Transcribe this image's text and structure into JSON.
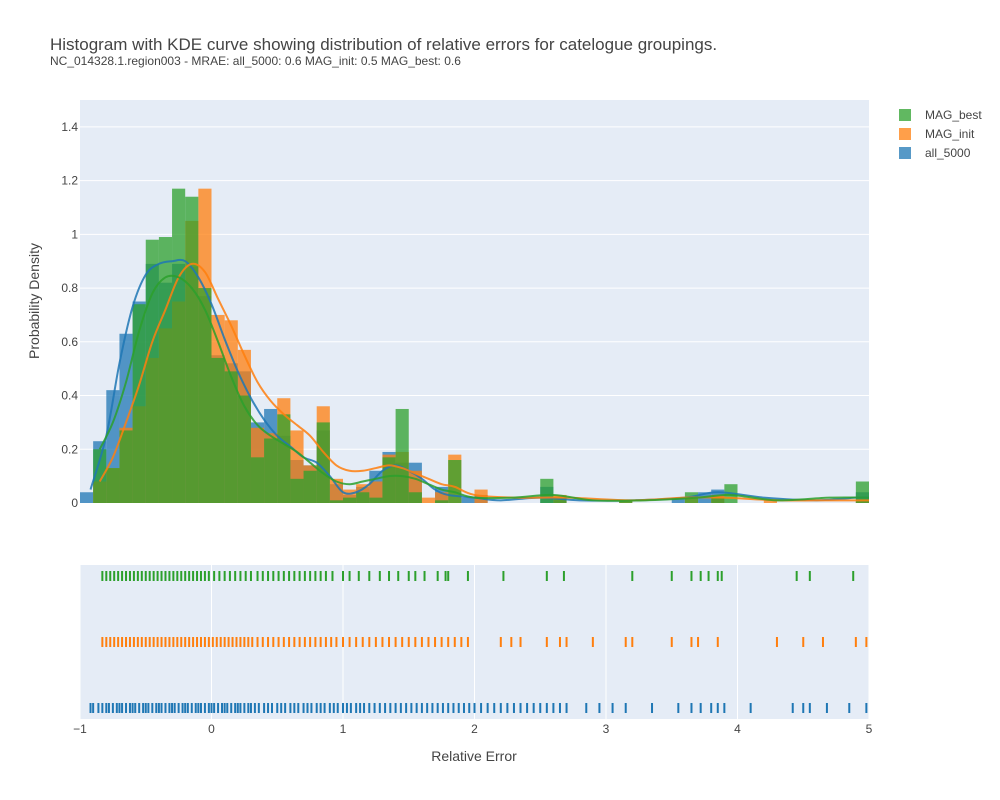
{
  "chart_data": {
    "type": "histogram",
    "title": "Histogram with KDE curve showing distribution of relative errors for catelogue groupings.",
    "subtitle": "NC_014328.1.region003 - MRAE: all_5000: 0.6 MAG_init: 0.5 MAG_best: 0.6",
    "xlabel": "Relative Error",
    "ylabel": "Probability Density",
    "xlim": [
      -1,
      5
    ],
    "ylim": [
      0,
      1.5
    ],
    "x_ticks": [
      {
        "value": -1,
        "label": "−1"
      },
      {
        "value": 0,
        "label": "0"
      },
      {
        "value": 1,
        "label": "1"
      },
      {
        "value": 2,
        "label": "2"
      },
      {
        "value": 3,
        "label": "3"
      },
      {
        "value": 4,
        "label": "4"
      },
      {
        "value": 5,
        "label": "5"
      }
    ],
    "y_ticks": [
      {
        "value": 0,
        "label": "0"
      },
      {
        "value": 0.2,
        "label": "0.2"
      },
      {
        "value": 0.4,
        "label": "0.4"
      },
      {
        "value": 0.6,
        "label": "0.6"
      },
      {
        "value": 0.8,
        "label": "0.8"
      },
      {
        "value": 1,
        "label": "1"
      },
      {
        "value": 1.2,
        "label": "1.2"
      },
      {
        "value": 1.4,
        "label": "1.4"
      }
    ],
    "grid": true,
    "legend_position": "top-right",
    "legend": [
      "MAG_best",
      "MAG_init",
      "all_5000"
    ],
    "bin_width": 0.1,
    "series": [
      {
        "name": "all_5000",
        "color": "#1f77b4",
        "hist": [
          [
            -0.95,
            0.04
          ],
          [
            -0.85,
            0.23
          ],
          [
            -0.75,
            0.42
          ],
          [
            -0.65,
            0.63
          ],
          [
            -0.55,
            0.75
          ],
          [
            -0.45,
            0.89
          ],
          [
            -0.35,
            0.82
          ],
          [
            -0.25,
            0.89
          ],
          [
            -0.15,
            0.88
          ],
          [
            -0.05,
            0.77
          ],
          [
            0.05,
            0.55
          ],
          [
            0.15,
            0.52
          ],
          [
            0.25,
            0.49
          ],
          [
            0.35,
            0.3
          ],
          [
            0.45,
            0.35
          ],
          [
            0.55,
            0.25
          ],
          [
            0.65,
            0.16
          ],
          [
            0.75,
            0.14
          ],
          [
            0.85,
            0.27
          ],
          [
            0.95,
            0.07
          ],
          [
            1.05,
            0.03
          ],
          [
            1.15,
            0.06
          ],
          [
            1.25,
            0.12
          ],
          [
            1.35,
            0.19
          ],
          [
            1.45,
            0.15
          ],
          [
            1.55,
            0.15
          ],
          [
            1.75,
            0.06
          ],
          [
            1.95,
            0.02
          ],
          [
            2.05,
            0.03
          ],
          [
            2.55,
            0.06
          ],
          [
            2.65,
            0.01
          ],
          [
            3.55,
            0.02
          ],
          [
            3.75,
            0.04
          ],
          [
            3.85,
            0.05
          ],
          [
            4.95,
            0.04
          ]
        ],
        "kde": [
          [
            -0.92,
            0.05
          ],
          [
            -0.8,
            0.25
          ],
          [
            -0.7,
            0.52
          ],
          [
            -0.6,
            0.73
          ],
          [
            -0.5,
            0.85
          ],
          [
            -0.4,
            0.89
          ],
          [
            -0.3,
            0.9
          ],
          [
            -0.2,
            0.9
          ],
          [
            -0.1,
            0.84
          ],
          [
            0,
            0.74
          ],
          [
            0.1,
            0.61
          ],
          [
            0.2,
            0.49
          ],
          [
            0.3,
            0.39
          ],
          [
            0.4,
            0.31
          ],
          [
            0.5,
            0.25
          ],
          [
            0.6,
            0.21
          ],
          [
            0.7,
            0.17
          ],
          [
            0.8,
            0.15
          ],
          [
            0.9,
            0.1
          ],
          [
            1,
            0.04
          ],
          [
            1.1,
            0.04
          ],
          [
            1.2,
            0.07
          ],
          [
            1.3,
            0.12
          ],
          [
            1.4,
            0.14
          ],
          [
            1.5,
            0.12
          ],
          [
            1.6,
            0.09
          ],
          [
            1.7,
            0.05
          ],
          [
            1.8,
            0.03
          ],
          [
            2,
            0.02
          ],
          [
            2.2,
            0.01
          ],
          [
            2.5,
            0.02
          ],
          [
            2.8,
            0.01
          ],
          [
            3.2,
            0.01
          ],
          [
            3.6,
            0.02
          ],
          [
            3.85,
            0.04
          ],
          [
            4.2,
            0.02
          ],
          [
            4.6,
            0.01
          ],
          [
            4.9,
            0.02
          ],
          [
            5,
            0.02
          ]
        ],
        "rug": [
          -0.92,
          -0.9,
          -0.86,
          -0.83,
          -0.8,
          -0.78,
          -0.75,
          -0.72,
          -0.7,
          -0.68,
          -0.65,
          -0.62,
          -0.6,
          -0.58,
          -0.55,
          -0.52,
          -0.5,
          -0.48,
          -0.45,
          -0.42,
          -0.4,
          -0.38,
          -0.35,
          -0.32,
          -0.3,
          -0.28,
          -0.25,
          -0.22,
          -0.2,
          -0.18,
          -0.15,
          -0.12,
          -0.1,
          -0.08,
          -0.05,
          -0.02,
          0,
          0.02,
          0.05,
          0.08,
          0.1,
          0.12,
          0.15,
          0.18,
          0.2,
          0.22,
          0.25,
          0.28,
          0.3,
          0.33,
          0.36,
          0.4,
          0.43,
          0.46,
          0.5,
          0.53,
          0.56,
          0.6,
          0.63,
          0.66,
          0.7,
          0.73,
          0.76,
          0.8,
          0.83,
          0.86,
          0.9,
          0.93,
          0.96,
          1,
          1.03,
          1.06,
          1.1,
          1.13,
          1.16,
          1.2,
          1.24,
          1.28,
          1.32,
          1.36,
          1.4,
          1.44,
          1.48,
          1.52,
          1.56,
          1.6,
          1.64,
          1.68,
          1.72,
          1.76,
          1.8,
          1.84,
          1.88,
          1.92,
          1.96,
          2,
          2.05,
          2.1,
          2.15,
          2.2,
          2.25,
          2.3,
          2.35,
          2.4,
          2.45,
          2.5,
          2.55,
          2.6,
          2.65,
          2.7,
          2.85,
          2.95,
          3.05,
          3.15,
          3.35,
          3.55,
          3.65,
          3.72,
          3.8,
          3.85,
          3.9,
          4.1,
          4.42,
          4.5,
          4.55,
          4.68,
          4.85,
          4.98
        ]
      },
      {
        "name": "MAG_init",
        "color": "#ff7f0e",
        "hist": [
          [
            -0.85,
            0.08
          ],
          [
            -0.75,
            0.13
          ],
          [
            -0.65,
            0.28
          ],
          [
            -0.55,
            0.36
          ],
          [
            -0.45,
            0.54
          ],
          [
            -0.35,
            0.65
          ],
          [
            -0.25,
            0.75
          ],
          [
            -0.15,
            1.05
          ],
          [
            -0.05,
            1.17
          ],
          [
            0.05,
            0.7
          ],
          [
            0.15,
            0.68
          ],
          [
            0.25,
            0.57
          ],
          [
            0.35,
            0.28
          ],
          [
            0.45,
            0.26
          ],
          [
            0.55,
            0.39
          ],
          [
            0.65,
            0.27
          ],
          [
            0.75,
            0.14
          ],
          [
            0.85,
            0.36
          ],
          [
            0.95,
            0.09
          ],
          [
            1.05,
            0.05
          ],
          [
            1.15,
            0.07
          ],
          [
            1.25,
            0.08
          ],
          [
            1.35,
            0.18
          ],
          [
            1.45,
            0.19
          ],
          [
            1.55,
            0.12
          ],
          [
            1.65,
            0.02
          ],
          [
            1.75,
            0.04
          ],
          [
            1.85,
            0.18
          ],
          [
            2.05,
            0.05
          ],
          [
            2.65,
            0.03
          ],
          [
            3.15,
            0.01
          ],
          [
            3.65,
            0.02
          ],
          [
            3.85,
            0.03
          ],
          [
            4.25,
            0.01
          ],
          [
            4.95,
            0.01
          ]
        ],
        "kde": [
          [
            -0.85,
            0.08
          ],
          [
            -0.75,
            0.17
          ],
          [
            -0.65,
            0.3
          ],
          [
            -0.55,
            0.44
          ],
          [
            -0.45,
            0.6
          ],
          [
            -0.35,
            0.72
          ],
          [
            -0.25,
            0.84
          ],
          [
            -0.15,
            0.89
          ],
          [
            -0.05,
            0.86
          ],
          [
            0.05,
            0.76
          ],
          [
            0.15,
            0.66
          ],
          [
            0.25,
            0.55
          ],
          [
            0.35,
            0.45
          ],
          [
            0.45,
            0.38
          ],
          [
            0.55,
            0.33
          ],
          [
            0.65,
            0.29
          ],
          [
            0.75,
            0.25
          ],
          [
            0.85,
            0.19
          ],
          [
            0.95,
            0.14
          ],
          [
            1.05,
            0.12
          ],
          [
            1.15,
            0.12
          ],
          [
            1.25,
            0.13
          ],
          [
            1.35,
            0.14
          ],
          [
            1.45,
            0.13
          ],
          [
            1.55,
            0.11
          ],
          [
            1.65,
            0.09
          ],
          [
            1.75,
            0.07
          ],
          [
            1.85,
            0.06
          ],
          [
            2,
            0.03
          ],
          [
            2.3,
            0.02
          ],
          [
            2.7,
            0.02
          ],
          [
            3.2,
            0.01
          ],
          [
            3.6,
            0.02
          ],
          [
            3.9,
            0.02
          ],
          [
            4.3,
            0.01
          ],
          [
            4.7,
            0.01
          ],
          [
            5,
            0.01
          ]
        ],
        "rug": [
          -0.83,
          -0.8,
          -0.77,
          -0.74,
          -0.71,
          -0.68,
          -0.65,
          -0.62,
          -0.59,
          -0.56,
          -0.53,
          -0.5,
          -0.47,
          -0.44,
          -0.41,
          -0.38,
          -0.35,
          -0.32,
          -0.29,
          -0.26,
          -0.23,
          -0.2,
          -0.17,
          -0.14,
          -0.11,
          -0.08,
          -0.05,
          -0.02,
          0.01,
          0.04,
          0.07,
          0.1,
          0.13,
          0.16,
          0.19,
          0.22,
          0.25,
          0.28,
          0.31,
          0.35,
          0.39,
          0.43,
          0.47,
          0.51,
          0.55,
          0.59,
          0.63,
          0.67,
          0.71,
          0.75,
          0.79,
          0.83,
          0.87,
          0.91,
          0.95,
          1,
          1.05,
          1.1,
          1.15,
          1.2,
          1.25,
          1.3,
          1.35,
          1.4,
          1.45,
          1.5,
          1.55,
          1.6,
          1.65,
          1.7,
          1.75,
          1.8,
          1.85,
          1.9,
          1.95,
          2.2,
          2.28,
          2.35,
          2.55,
          2.65,
          2.7,
          2.9,
          3.15,
          3.2,
          3.5,
          3.65,
          3.7,
          3.85,
          4.3,
          4.5,
          4.65,
          4.9,
          4.98
        ]
      },
      {
        "name": "MAG_best",
        "color": "#2ca02c",
        "hist": [
          [
            -0.85,
            0.2
          ],
          [
            -0.75,
            0.13
          ],
          [
            -0.65,
            0.27
          ],
          [
            -0.55,
            0.74
          ],
          [
            -0.45,
            0.98
          ],
          [
            -0.35,
            0.99
          ],
          [
            -0.25,
            1.17
          ],
          [
            -0.15,
            1.14
          ],
          [
            -0.05,
            0.8
          ],
          [
            0.05,
            0.54
          ],
          [
            0.15,
            0.49
          ],
          [
            0.25,
            0.4
          ],
          [
            0.35,
            0.17
          ],
          [
            0.45,
            0.24
          ],
          [
            0.55,
            0.33
          ],
          [
            0.65,
            0.09
          ],
          [
            0.75,
            0.12
          ],
          [
            0.85,
            0.3
          ],
          [
            0.95,
            0.01
          ],
          [
            1.05,
            0.02
          ],
          [
            1.15,
            0.04
          ],
          [
            1.25,
            0.02
          ],
          [
            1.35,
            0.17
          ],
          [
            1.45,
            0.35
          ],
          [
            1.55,
            0.04
          ],
          [
            1.75,
            0.01
          ],
          [
            1.85,
            0.16
          ],
          [
            2.55,
            0.09
          ],
          [
            2.65,
            0.02
          ],
          [
            3.15,
            0.01
          ],
          [
            3.65,
            0.04
          ],
          [
            3.85,
            0.02
          ],
          [
            3.95,
            0.07
          ],
          [
            4.95,
            0.08
          ]
        ],
        "kde": [
          [
            -0.85,
            0.2
          ],
          [
            -0.75,
            0.3
          ],
          [
            -0.65,
            0.45
          ],
          [
            -0.55,
            0.64
          ],
          [
            -0.45,
            0.78
          ],
          [
            -0.35,
            0.84
          ],
          [
            -0.25,
            0.84
          ],
          [
            -0.15,
            0.8
          ],
          [
            -0.05,
            0.72
          ],
          [
            0.05,
            0.6
          ],
          [
            0.15,
            0.47
          ],
          [
            0.25,
            0.36
          ],
          [
            0.35,
            0.29
          ],
          [
            0.45,
            0.25
          ],
          [
            0.55,
            0.22
          ],
          [
            0.65,
            0.19
          ],
          [
            0.75,
            0.15
          ],
          [
            0.85,
            0.11
          ],
          [
            0.95,
            0.08
          ],
          [
            1.05,
            0.07
          ],
          [
            1.15,
            0.08
          ],
          [
            1.25,
            0.09
          ],
          [
            1.35,
            0.1
          ],
          [
            1.45,
            0.1
          ],
          [
            1.55,
            0.09
          ],
          [
            1.65,
            0.07
          ],
          [
            1.75,
            0.05
          ],
          [
            1.85,
            0.04
          ],
          [
            2,
            0.02
          ],
          [
            2.3,
            0.02
          ],
          [
            2.6,
            0.03
          ],
          [
            2.9,
            0.01
          ],
          [
            3.3,
            0.01
          ],
          [
            3.7,
            0.02
          ],
          [
            3.95,
            0.03
          ],
          [
            4.3,
            0.01
          ],
          [
            4.7,
            0.02
          ],
          [
            5,
            0.02
          ]
        ],
        "rug": [
          -0.83,
          -0.8,
          -0.77,
          -0.74,
          -0.71,
          -0.68,
          -0.65,
          -0.62,
          -0.59,
          -0.56,
          -0.53,
          -0.5,
          -0.47,
          -0.44,
          -0.41,
          -0.38,
          -0.35,
          -0.32,
          -0.29,
          -0.26,
          -0.23,
          -0.2,
          -0.17,
          -0.14,
          -0.11,
          -0.08,
          -0.05,
          -0.02,
          0.02,
          0.06,
          0.1,
          0.14,
          0.18,
          0.22,
          0.26,
          0.3,
          0.35,
          0.39,
          0.43,
          0.47,
          0.51,
          0.55,
          0.59,
          0.63,
          0.67,
          0.71,
          0.75,
          0.79,
          0.83,
          0.87,
          0.92,
          1,
          1.05,
          1.12,
          1.2,
          1.28,
          1.35,
          1.42,
          1.5,
          1.55,
          1.62,
          1.72,
          1.78,
          1.8,
          1.95,
          2.22,
          2.55,
          2.68,
          3.2,
          3.5,
          3.65,
          3.72,
          3.78,
          3.85,
          3.88,
          4.45,
          4.55,
          4.88
        ]
      }
    ]
  }
}
